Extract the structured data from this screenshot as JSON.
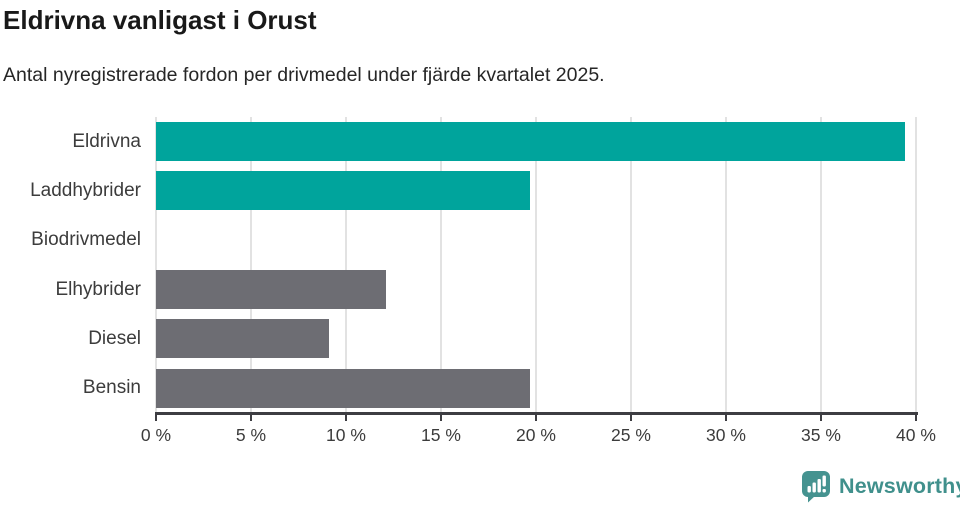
{
  "chart_data": {
    "type": "bar",
    "orientation": "horizontal",
    "title": "Eldrivna vanligast i Orust",
    "subtitle": "Antal nyregistrerade fordon per drivmedel under fjärde kvartalet 2025.",
    "categories": [
      "Eldrivna",
      "Laddhybrider",
      "Biodrivmedel",
      "Elhybrider",
      "Diesel",
      "Bensin"
    ],
    "values": [
      39.4,
      19.7,
      0,
      12.1,
      9.1,
      19.7
    ],
    "unit": "%",
    "bar_colors": [
      "#00a49c",
      "#00a49c",
      "#6d6d73",
      "#6d6d73",
      "#6d6d73",
      "#6d6d73"
    ],
    "xlim": [
      0,
      40
    ],
    "x_tick_labels": [
      "0 %",
      "5 %",
      "10 %",
      "15 %",
      "20 %",
      "25 %",
      "30 %",
      "35 %",
      "40 %"
    ],
    "x_tick_values": [
      0,
      5,
      10,
      15,
      20,
      25,
      30,
      35,
      40
    ],
    "grid": "vertical",
    "legend": "none"
  },
  "colors": {
    "accent_teal": "#00a49c",
    "neutral_gray": "#6d6d73",
    "axis": "#3d3d42",
    "gridline": "#e2e2e2",
    "logo_teal": "#40908c"
  },
  "footer": {
    "logo_text": "Newsworthy"
  }
}
